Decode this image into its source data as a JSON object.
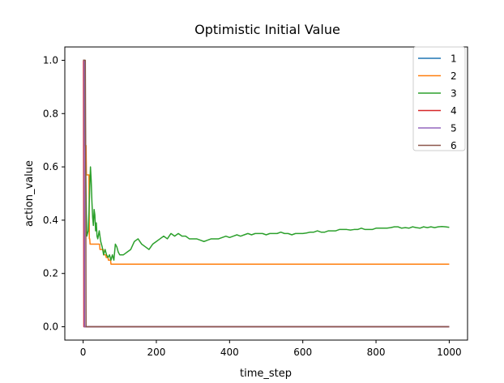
{
  "chart_data": {
    "type": "line",
    "title": "Optimistic Initial Value",
    "xlabel": "time_step",
    "ylabel": "action_value",
    "xlim": [
      -50,
      1050
    ],
    "ylim": [
      -0.05,
      1.05
    ],
    "x_ticks": [
      0,
      200,
      400,
      600,
      800,
      1000
    ],
    "y_ticks": [
      0.0,
      0.2,
      0.4,
      0.6,
      0.8,
      1.0
    ],
    "x_tick_labels": [
      "0",
      "200",
      "400",
      "600",
      "800",
      "1000"
    ],
    "y_tick_labels": [
      "0.0",
      "0.2",
      "0.4",
      "0.6",
      "0.8",
      "1.0"
    ],
    "grid": false,
    "legend_position": "top-right",
    "series": [
      {
        "name": "1",
        "color": "#1f77b4",
        "points": [
          [
            0,
            1.0
          ],
          [
            2,
            1.0
          ],
          [
            3,
            0.0
          ],
          [
            1000,
            0.0
          ]
        ]
      },
      {
        "name": "2",
        "color": "#ff7f0e",
        "points": [
          [
            0,
            1.0
          ],
          [
            4,
            1.0
          ],
          [
            5,
            0.68
          ],
          [
            8,
            0.68
          ],
          [
            9,
            0.57
          ],
          [
            16,
            0.57
          ],
          [
            17,
            0.33
          ],
          [
            18,
            0.33
          ],
          [
            19,
            0.31
          ],
          [
            45,
            0.31
          ],
          [
            46,
            0.29
          ],
          [
            55,
            0.29
          ],
          [
            56,
            0.27
          ],
          [
            62,
            0.27
          ],
          [
            63,
            0.26
          ],
          [
            68,
            0.26
          ],
          [
            69,
            0.25
          ],
          [
            75,
            0.25
          ],
          [
            76,
            0.235
          ],
          [
            1000,
            0.235
          ]
        ]
      },
      {
        "name": "3",
        "color": "#2ca02c",
        "points": [
          [
            0,
            1.0
          ],
          [
            5,
            1.0
          ],
          [
            6,
            0.75
          ],
          [
            8,
            0.5
          ],
          [
            10,
            0.34
          ],
          [
            14,
            0.36
          ],
          [
            16,
            0.43
          ],
          [
            18,
            0.52
          ],
          [
            20,
            0.6
          ],
          [
            22,
            0.55
          ],
          [
            24,
            0.47
          ],
          [
            26,
            0.41
          ],
          [
            28,
            0.38
          ],
          [
            30,
            0.44
          ],
          [
            32,
            0.42
          ],
          [
            34,
            0.36
          ],
          [
            36,
            0.39
          ],
          [
            38,
            0.34
          ],
          [
            40,
            0.33
          ],
          [
            44,
            0.36
          ],
          [
            48,
            0.32
          ],
          [
            52,
            0.3
          ],
          [
            56,
            0.27
          ],
          [
            60,
            0.29
          ],
          [
            64,
            0.27
          ],
          [
            68,
            0.26
          ],
          [
            72,
            0.27
          ],
          [
            76,
            0.25
          ],
          [
            80,
            0.27
          ],
          [
            84,
            0.25
          ],
          [
            88,
            0.31
          ],
          [
            92,
            0.3
          ],
          [
            96,
            0.28
          ],
          [
            100,
            0.27
          ],
          [
            110,
            0.27
          ],
          [
            120,
            0.28
          ],
          [
            130,
            0.29
          ],
          [
            140,
            0.32
          ],
          [
            150,
            0.33
          ],
          [
            160,
            0.31
          ],
          [
            170,
            0.3
          ],
          [
            180,
            0.29
          ],
          [
            190,
            0.31
          ],
          [
            200,
            0.32
          ],
          [
            210,
            0.33
          ],
          [
            220,
            0.34
          ],
          [
            230,
            0.33
          ],
          [
            240,
            0.35
          ],
          [
            250,
            0.34
          ],
          [
            260,
            0.35
          ],
          [
            270,
            0.34
          ],
          [
            280,
            0.34
          ],
          [
            290,
            0.33
          ],
          [
            300,
            0.33
          ],
          [
            310,
            0.33
          ],
          [
            320,
            0.325
          ],
          [
            330,
            0.32
          ],
          [
            340,
            0.325
          ],
          [
            350,
            0.33
          ],
          [
            360,
            0.33
          ],
          [
            370,
            0.33
          ],
          [
            380,
            0.335
          ],
          [
            390,
            0.34
          ],
          [
            400,
            0.335
          ],
          [
            410,
            0.34
          ],
          [
            420,
            0.345
          ],
          [
            430,
            0.34
          ],
          [
            440,
            0.345
          ],
          [
            450,
            0.35
          ],
          [
            460,
            0.345
          ],
          [
            470,
            0.35
          ],
          [
            480,
            0.35
          ],
          [
            490,
            0.35
          ],
          [
            500,
            0.345
          ],
          [
            510,
            0.35
          ],
          [
            520,
            0.35
          ],
          [
            530,
            0.35
          ],
          [
            540,
            0.355
          ],
          [
            550,
            0.35
          ],
          [
            560,
            0.35
          ],
          [
            570,
            0.345
          ],
          [
            580,
            0.35
          ],
          [
            590,
            0.35
          ],
          [
            600,
            0.35
          ],
          [
            610,
            0.352
          ],
          [
            620,
            0.355
          ],
          [
            630,
            0.355
          ],
          [
            640,
            0.36
          ],
          [
            650,
            0.355
          ],
          [
            660,
            0.355
          ],
          [
            670,
            0.36
          ],
          [
            680,
            0.36
          ],
          [
            690,
            0.36
          ],
          [
            700,
            0.365
          ],
          [
            710,
            0.365
          ],
          [
            720,
            0.365
          ],
          [
            730,
            0.363
          ],
          [
            740,
            0.365
          ],
          [
            750,
            0.365
          ],
          [
            760,
            0.37
          ],
          [
            770,
            0.365
          ],
          [
            780,
            0.365
          ],
          [
            790,
            0.365
          ],
          [
            800,
            0.37
          ],
          [
            810,
            0.37
          ],
          [
            820,
            0.37
          ],
          [
            830,
            0.37
          ],
          [
            840,
            0.372
          ],
          [
            850,
            0.375
          ],
          [
            860,
            0.375
          ],
          [
            870,
            0.37
          ],
          [
            880,
            0.372
          ],
          [
            890,
            0.37
          ],
          [
            900,
            0.375
          ],
          [
            910,
            0.372
          ],
          [
            920,
            0.37
          ],
          [
            930,
            0.375
          ],
          [
            940,
            0.372
          ],
          [
            950,
            0.375
          ],
          [
            960,
            0.372
          ],
          [
            970,
            0.375
          ],
          [
            980,
            0.376
          ],
          [
            990,
            0.375
          ],
          [
            1000,
            0.373
          ]
        ]
      },
      {
        "name": "4",
        "color": "#d62728",
        "points": [
          [
            0,
            1.0
          ],
          [
            1,
            1.0
          ],
          [
            2,
            0.0
          ],
          [
            1000,
            0.0
          ]
        ]
      },
      {
        "name": "5",
        "color": "#9467bd",
        "points": [
          [
            0,
            1.0
          ],
          [
            3,
            1.0
          ],
          [
            4,
            0.0
          ],
          [
            1000,
            0.0
          ]
        ]
      },
      {
        "name": "6",
        "color": "#8c564b",
        "points": [
          [
            0,
            1.0
          ],
          [
            6,
            1.0
          ],
          [
            7,
            0.66
          ],
          [
            8,
            0.0
          ],
          [
            1000,
            0.0
          ]
        ]
      }
    ]
  }
}
